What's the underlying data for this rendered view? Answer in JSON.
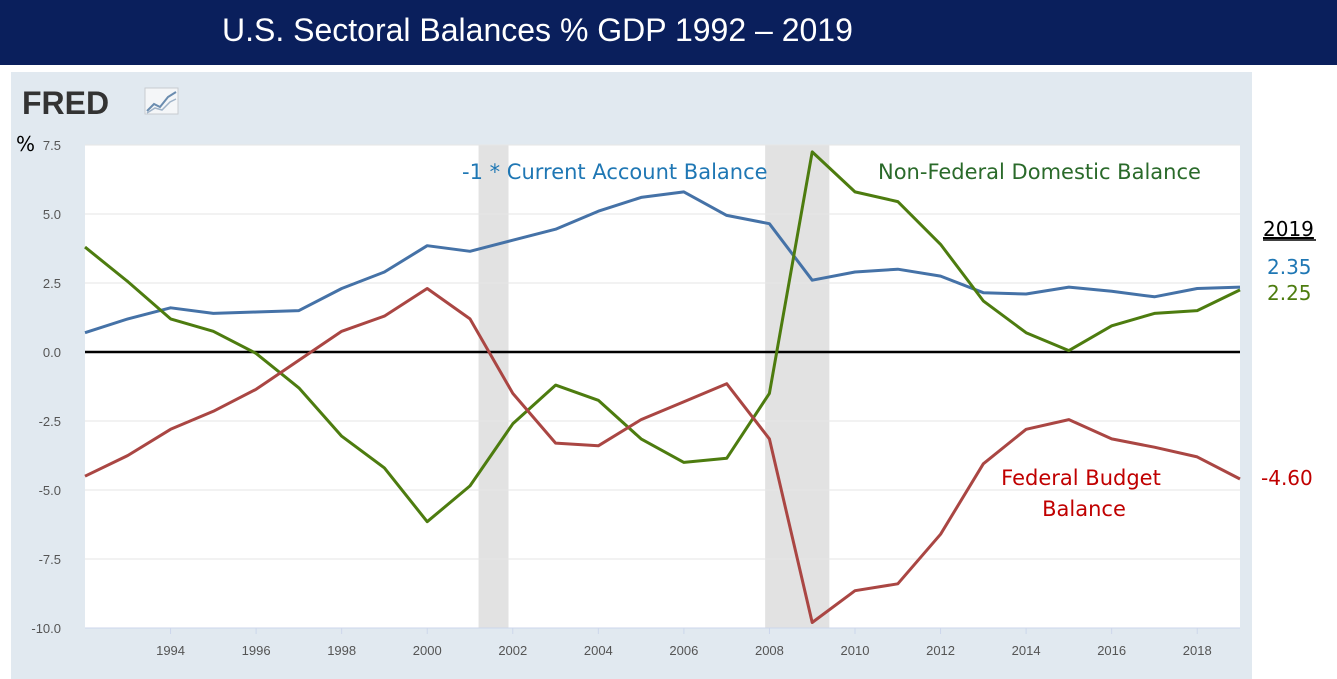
{
  "title": "U.S. Sectoral Balances % GDP 1992 – 2019",
  "logo": {
    "text": "FRED",
    "icon": "fred-chart-logo-icon"
  },
  "colors": {
    "header_bg": "#0a1f5c",
    "panel_bg": "#e1e9f0",
    "current_account": "#4572a7",
    "federal_budget": "#aa4643",
    "non_federal": "#4d7c0f",
    "recession": "#e2e2e2",
    "current_account_label": "#1f77b4",
    "non_federal_label": "#2a6a2a",
    "federal_label": "#c00000"
  },
  "chart_data": {
    "type": "line",
    "title": "U.S. Sectoral Balances % GDP 1992 – 2019",
    "ylabel": "%",
    "xlabel": "",
    "xlim": [
      1992,
      2019
    ],
    "ylim": [
      -10,
      7.5
    ],
    "yticks": [
      -10,
      -7.5,
      -5,
      -2.5,
      0,
      2.5,
      5,
      7.5
    ],
    "ytick_labels": [
      "-10.0",
      "-7.5",
      "-5.0",
      "-2.5",
      "0.0",
      "2.5",
      "5.0",
      "7.5"
    ],
    "xticks": [
      1994,
      1996,
      1998,
      2000,
      2002,
      2004,
      2006,
      2008,
      2010,
      2012,
      2014,
      2016,
      2018
    ],
    "xtick_labels": [
      "1994",
      "1996",
      "1998",
      "2000",
      "2002",
      "2004",
      "2006",
      "2008",
      "2010",
      "2012",
      "2014",
      "2016",
      "2018"
    ],
    "grid": true,
    "zero_line": true,
    "recessions": [
      [
        2001.2,
        2001.9
      ],
      [
        2007.9,
        2009.4
      ]
    ],
    "x": [
      1992,
      1993,
      1994,
      1995,
      1996,
      1997,
      1998,
      1999,
      2000,
      2001,
      2002,
      2003,
      2004,
      2005,
      2006,
      2007,
      2008,
      2009,
      2010,
      2011,
      2012,
      2013,
      2014,
      2015,
      2016,
      2017,
      2018,
      2019
    ],
    "series": [
      {
        "name": "-1 * Current Account Balance",
        "color": "#4572a7",
        "values": [
          0.7,
          1.2,
          1.6,
          1.4,
          1.45,
          1.5,
          2.3,
          2.9,
          3.85,
          3.65,
          4.05,
          4.45,
          5.1,
          5.6,
          5.8,
          4.95,
          4.65,
          2.6,
          2.9,
          3.0,
          2.75,
          2.15,
          2.1,
          2.35,
          2.2,
          2.0,
          2.3,
          2.35
        ]
      },
      {
        "name": "Non-Federal Domestic Balance",
        "color": "#4d7c0f",
        "values": [
          3.8,
          2.55,
          1.2,
          0.75,
          -0.05,
          -1.3,
          -3.05,
          -4.2,
          -6.15,
          -4.85,
          -2.6,
          -1.2,
          -1.75,
          -3.15,
          -4.0,
          -3.85,
          -1.5,
          7.25,
          5.8,
          5.45,
          3.9,
          1.85,
          0.7,
          0.05,
          0.95,
          1.4,
          1.5,
          2.25
        ]
      },
      {
        "name": "Federal Budget Balance",
        "color": "#aa4643",
        "values": [
          -4.5,
          -3.75,
          -2.8,
          -2.15,
          -1.35,
          -0.3,
          0.75,
          1.3,
          2.3,
          1.2,
          -1.5,
          -3.3,
          -3.4,
          -2.45,
          -1.8,
          -1.15,
          -3.15,
          -9.8,
          -8.65,
          -8.4,
          -6.6,
          -4.05,
          -2.8,
          -2.45,
          -3.15,
          -3.45,
          -3.8,
          -4.6
        ]
      }
    ]
  },
  "annotations": {
    "current_account": "-1 * Current Account Balance",
    "non_federal": "Non-Federal Domestic Balance",
    "federal_line1": "Federal Budget",
    "federal_line2": "Balance"
  },
  "side_labels": {
    "year": "2019",
    "current_account_2019": "2.35",
    "non_federal_2019": "2.25",
    "federal_2019": "-4.60"
  }
}
